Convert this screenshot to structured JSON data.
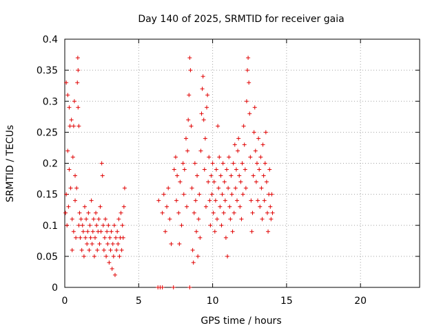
{
  "chart_data": {
    "type": "scatter",
    "title": "Day 140 of 2025, SRMTID for receiver gaia",
    "xlabel": "GPS time / hours",
    "ylabel": "SRMTID / TECUs",
    "xlim": [
      0,
      24
    ],
    "ylim": [
      0,
      0.4
    ],
    "x_ticks": [
      0,
      5,
      10,
      15,
      20
    ],
    "x_tick_labels": [
      "0",
      "5",
      "10",
      "15",
      "20"
    ],
    "y_ticks": [
      0,
      0.05,
      0.1,
      0.15,
      0.2,
      0.25,
      0.3,
      0.35,
      0.4
    ],
    "y_tick_labels": [
      "0",
      "0.05",
      "0.1",
      "0.15",
      "0.2",
      "0.25",
      "0.3",
      "0.35",
      "0.4"
    ],
    "grid": true,
    "marker": "+",
    "marker_color": "#e00000",
    "series": [
      {
        "name": "SRMTID",
        "points": [
          [
            0.05,
            0.12
          ],
          [
            0.1,
            0.33
          ],
          [
            0.1,
            0.15
          ],
          [
            0.15,
            0.1
          ],
          [
            0.2,
            0.31
          ],
          [
            0.2,
            0.22
          ],
          [
            0.25,
            0.13
          ],
          [
            0.3,
            0.29
          ],
          [
            0.3,
            0.19
          ],
          [
            0.35,
            0.26
          ],
          [
            0.4,
            0.16
          ],
          [
            0.45,
            0.27
          ],
          [
            0.5,
            0.11
          ],
          [
            0.5,
            0.06
          ],
          [
            0.55,
            0.21
          ],
          [
            0.6,
            0.26
          ],
          [
            0.6,
            0.09
          ],
          [
            0.65,
            0.3
          ],
          [
            0.7,
            0.18
          ],
          [
            0.7,
            0.14
          ],
          [
            0.75,
            0.08
          ],
          [
            0.8,
            0.16
          ],
          [
            0.85,
            0.33
          ],
          [
            0.88,
            0.37
          ],
          [
            0.9,
            0.35
          ],
          [
            0.9,
            0.29
          ],
          [
            0.95,
            0.26
          ],
          [
            0.95,
            0.1
          ],
          [
            1.0,
            0.12
          ],
          [
            1.05,
            0.08
          ],
          [
            1.1,
            0.11
          ],
          [
            1.15,
            0.06
          ],
          [
            1.2,
            0.1
          ],
          [
            1.25,
            0.09
          ],
          [
            1.3,
            0.05
          ],
          [
            1.35,
            0.13
          ],
          [
            1.4,
            0.08
          ],
          [
            1.45,
            0.11
          ],
          [
            1.5,
            0.07
          ],
          [
            1.55,
            0.09
          ],
          [
            1.6,
            0.12
          ],
          [
            1.65,
            0.06
          ],
          [
            1.7,
            0.1
          ],
          [
            1.75,
            0.08
          ],
          [
            1.8,
            0.14
          ],
          [
            1.85,
            0.07
          ],
          [
            1.9,
            0.09
          ],
          [
            1.95,
            0.11
          ],
          [
            2.0,
            0.05
          ],
          [
            2.05,
            0.08
          ],
          [
            2.1,
            0.12
          ],
          [
            2.15,
            0.1
          ],
          [
            2.2,
            0.06
          ],
          [
            2.25,
            0.09
          ],
          [
            2.3,
            0.11
          ],
          [
            2.35,
            0.07
          ],
          [
            2.4,
            0.13
          ],
          [
            2.45,
            0.09
          ],
          [
            2.5,
            0.2
          ],
          [
            2.55,
            0.18
          ],
          [
            2.6,
            0.1
          ],
          [
            2.65,
            0.06
          ],
          [
            2.7,
            0.08
          ],
          [
            2.75,
            0.11
          ],
          [
            2.8,
            0.05
          ],
          [
            2.85,
            0.09
          ],
          [
            2.9,
            0.07
          ],
          [
            2.95,
            0.1
          ],
          [
            3.0,
            0.04
          ],
          [
            3.05,
            0.08
          ],
          [
            3.1,
            0.06
          ],
          [
            3.15,
            0.09
          ],
          [
            3.2,
            0.03
          ],
          [
            3.25,
            0.07
          ],
          [
            3.3,
            0.05
          ],
          [
            3.35,
            0.1
          ],
          [
            3.4,
            0.02
          ],
          [
            3.45,
            0.08
          ],
          [
            3.5,
            0.06
          ],
          [
            3.55,
            0.09
          ],
          [
            3.6,
            0.07
          ],
          [
            3.65,
            0.11
          ],
          [
            3.7,
            0.05
          ],
          [
            3.75,
            0.08
          ],
          [
            3.8,
            0.12
          ],
          [
            3.85,
            0.06
          ],
          [
            3.9,
            0.1
          ],
          [
            3.95,
            0.08
          ],
          [
            4.0,
            0.13
          ],
          [
            4.05,
            0.16
          ],
          [
            6.3,
            0.0
          ],
          [
            6.35,
            0.14
          ],
          [
            6.45,
            0.0
          ],
          [
            6.6,
            0.0
          ],
          [
            6.6,
            0.12
          ],
          [
            6.7,
            0.15
          ],
          [
            6.8,
            0.09
          ],
          [
            6.9,
            0.13
          ],
          [
            7.0,
            0.16
          ],
          [
            7.1,
            0.11
          ],
          [
            7.2,
            0.07
          ],
          [
            7.35,
            0.0
          ],
          [
            7.4,
            0.19
          ],
          [
            7.5,
            0.21
          ],
          [
            7.55,
            0.14
          ],
          [
            7.6,
            0.18
          ],
          [
            7.7,
            0.12
          ],
          [
            7.75,
            0.07
          ],
          [
            7.8,
            0.17
          ],
          [
            7.9,
            0.1
          ],
          [
            8.0,
            0.2
          ],
          [
            8.05,
            0.15
          ],
          [
            8.1,
            0.19
          ],
          [
            8.2,
            0.24
          ],
          [
            8.25,
            0.13
          ],
          [
            8.3,
            0.22
          ],
          [
            8.35,
            0.27
          ],
          [
            8.4,
            0.31
          ],
          [
            8.45,
            0.37
          ],
          [
            8.45,
            0.0
          ],
          [
            8.5,
            0.35
          ],
          [
            8.55,
            0.26
          ],
          [
            8.6,
            0.16
          ],
          [
            8.65,
            0.06
          ],
          [
            8.7,
            0.04
          ],
          [
            8.75,
            0.12
          ],
          [
            8.8,
            0.2
          ],
          [
            8.85,
            0.14
          ],
          [
            8.9,
            0.09
          ],
          [
            8.95,
            0.18
          ],
          [
            9.0,
            0.05
          ],
          [
            9.05,
            0.11
          ],
          [
            9.1,
            0.15
          ],
          [
            9.15,
            0.08
          ],
          [
            9.2,
            0.22
          ],
          [
            9.25,
            0.28
          ],
          [
            9.3,
            0.32
          ],
          [
            9.35,
            0.34
          ],
          [
            9.4,
            0.27
          ],
          [
            9.45,
            0.19
          ],
          [
            9.5,
            0.24
          ],
          [
            9.55,
            0.13
          ],
          [
            9.6,
            0.29
          ],
          [
            9.65,
            0.31
          ],
          [
            9.7,
            0.17
          ],
          [
            9.75,
            0.21
          ],
          [
            9.8,
            0.14
          ],
          [
            9.85,
            0.1
          ],
          [
            9.9,
            0.18
          ],
          [
            9.95,
            0.15
          ],
          [
            10.0,
            0.2
          ],
          [
            10.05,
            0.12
          ],
          [
            10.1,
            0.17
          ],
          [
            10.15,
            0.09
          ],
          [
            10.2,
            0.14
          ],
          [
            10.25,
            0.19
          ],
          [
            10.3,
            0.11
          ],
          [
            10.35,
            0.26
          ],
          [
            10.4,
            0.16
          ],
          [
            10.45,
            0.21
          ],
          [
            10.5,
            0.13
          ],
          [
            10.55,
            0.18
          ],
          [
            10.6,
            0.1
          ],
          [
            10.65,
            0.15
          ],
          [
            10.7,
            0.2
          ],
          [
            10.75,
            0.12
          ],
          [
            10.8,
            0.17
          ],
          [
            10.85,
            0.14
          ],
          [
            10.9,
            0.08
          ],
          [
            10.95,
            0.19
          ],
          [
            11.0,
            0.05
          ],
          [
            11.05,
            0.16
          ],
          [
            11.1,
            0.21
          ],
          [
            11.15,
            0.13
          ],
          [
            11.2,
            0.11
          ],
          [
            11.25,
            0.18
          ],
          [
            11.3,
            0.15
          ],
          [
            11.35,
            0.09
          ],
          [
            11.4,
            0.2
          ],
          [
            11.45,
            0.12
          ],
          [
            11.5,
            0.23
          ],
          [
            11.55,
            0.16
          ],
          [
            11.6,
            0.19
          ],
          [
            11.65,
            0.14
          ],
          [
            11.7,
            0.22
          ],
          [
            11.75,
            0.24
          ],
          [
            11.8,
            0.18
          ],
          [
            11.85,
            0.13
          ],
          [
            11.9,
            0.17
          ],
          [
            11.95,
            0.11
          ],
          [
            12.0,
            0.2
          ],
          [
            12.05,
            0.15
          ],
          [
            12.1,
            0.26
          ],
          [
            12.15,
            0.23
          ],
          [
            12.2,
            0.19
          ],
          [
            12.25,
            0.16
          ],
          [
            12.3,
            0.3
          ],
          [
            12.35,
            0.35
          ],
          [
            12.4,
            0.37
          ],
          [
            12.45,
            0.33
          ],
          [
            12.5,
            0.28
          ],
          [
            12.55,
            0.21
          ],
          [
            12.6,
            0.14
          ],
          [
            12.65,
            0.09
          ],
          [
            12.7,
            0.12
          ],
          [
            12.75,
            0.18
          ],
          [
            12.8,
            0.25
          ],
          [
            12.85,
            0.29
          ],
          [
            12.9,
            0.22
          ],
          [
            12.95,
            0.17
          ],
          [
            13.0,
            0.2
          ],
          [
            13.05,
            0.14
          ],
          [
            13.1,
            0.24
          ],
          [
            13.15,
            0.19
          ],
          [
            13.2,
            0.13
          ],
          [
            13.25,
            0.21
          ],
          [
            13.3,
            0.16
          ],
          [
            13.35,
            0.11
          ],
          [
            13.4,
            0.23
          ],
          [
            13.45,
            0.18
          ],
          [
            13.5,
            0.14
          ],
          [
            13.55,
            0.2
          ],
          [
            13.6,
            0.25
          ],
          [
            13.65,
            0.17
          ],
          [
            13.7,
            0.12
          ],
          [
            13.75,
            0.09
          ],
          [
            13.8,
            0.15
          ],
          [
            13.85,
            0.19
          ],
          [
            13.9,
            0.13
          ],
          [
            13.95,
            0.11
          ],
          [
            14.0,
            0.15
          ],
          [
            14.05,
            0.12
          ]
        ]
      }
    ]
  }
}
